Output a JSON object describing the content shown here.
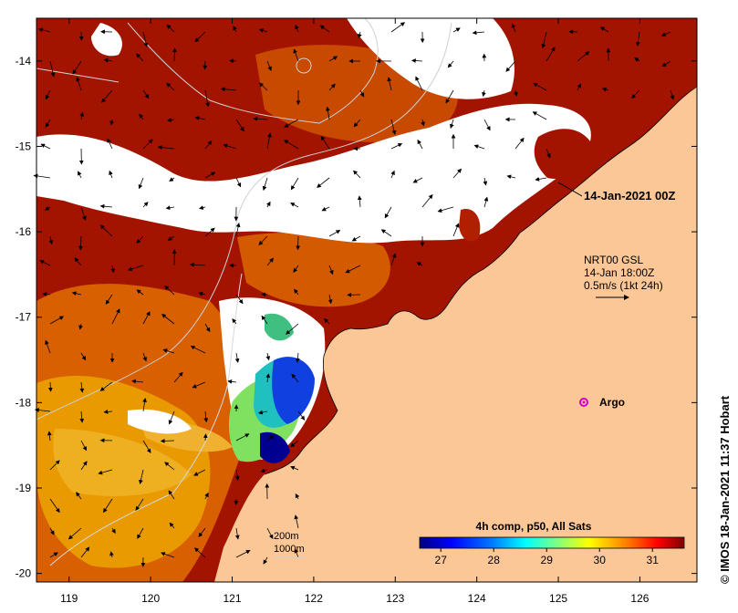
{
  "map": {
    "lat_labels": [
      "-14",
      "-15",
      "-16",
      "-17",
      "-18",
      "-19",
      "-20"
    ],
    "lon_labels": [
      "119",
      "120",
      "121",
      "122",
      "123",
      "124",
      "125",
      "126"
    ],
    "lat_range": [
      -20.1,
      -13.5
    ],
    "lon_range": [
      118.6,
      126.7
    ]
  },
  "annotations": {
    "date_label": "14-Jan-2021 00Z",
    "current_source": "NRT00 GSL",
    "current_time": "14-Jan 18:00Z",
    "current_scale": "0.5m/s (1kt 24h)",
    "argo_label": "Argo",
    "depth_200": "200m",
    "depth_1000": "1000m",
    "credit": "© IMOS 18-Jan-2021 11:37 Hobart"
  },
  "colorbar": {
    "title": "4h comp, p50, All Sats",
    "ticks": [
      "27",
      "28",
      "29",
      "30",
      "31"
    ],
    "min": 26.6,
    "max": 31.6,
    "colors": [
      "#00007f",
      "#0000ff",
      "#0080ff",
      "#00ffff",
      "#80ff80",
      "#ffff00",
      "#ff8000",
      "#ff0000",
      "#7f0000"
    ]
  },
  "colors": {
    "land": "#fbc797",
    "no_data": "#ffffff",
    "sst_hot": "#a31400",
    "sst_warm": "#d45a00",
    "sst_mid": "#e89000",
    "argo": "#d000d0"
  }
}
